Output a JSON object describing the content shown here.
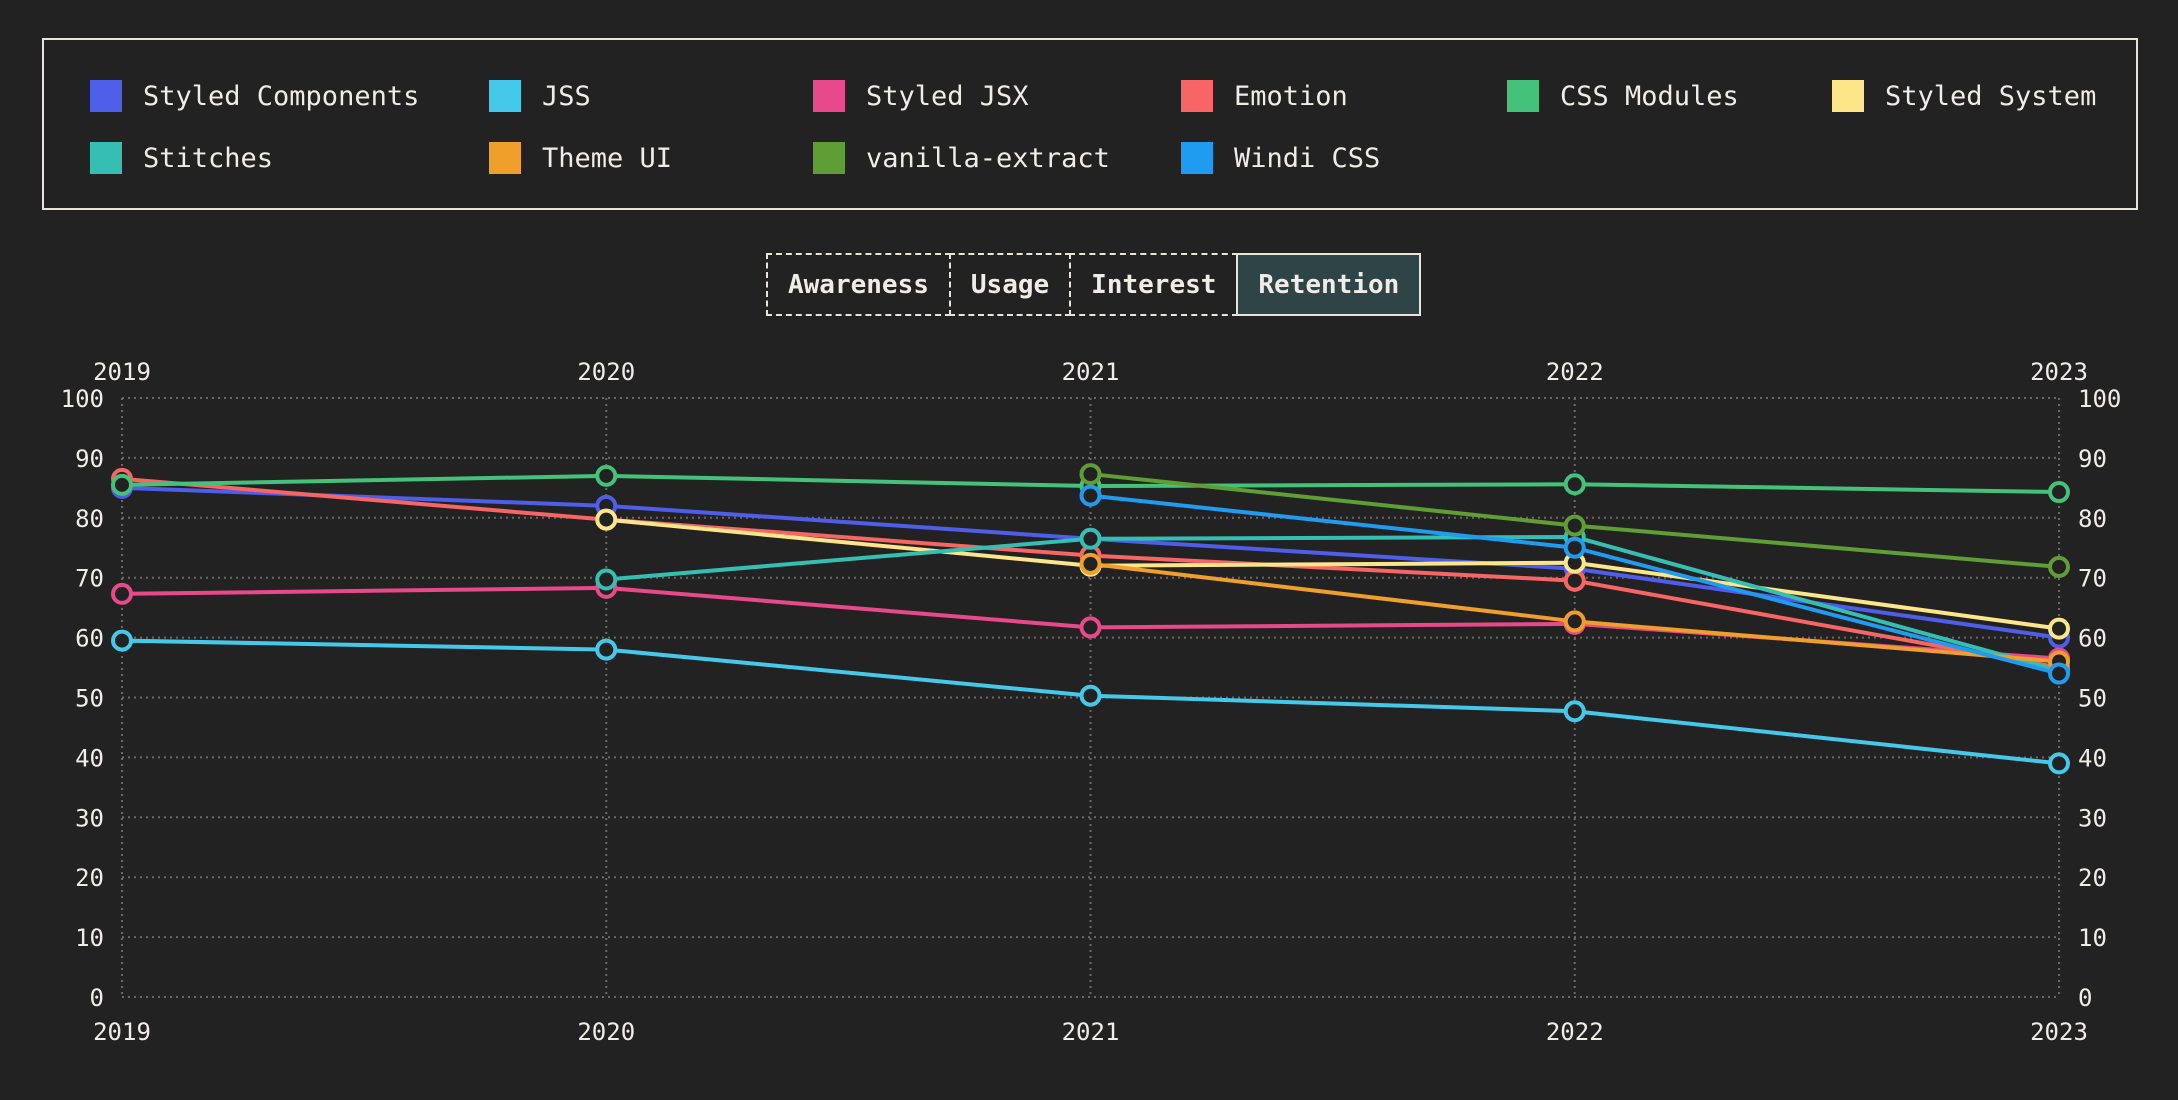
{
  "tabs": [
    {
      "label": "Awareness",
      "active": false
    },
    {
      "label": "Usage",
      "active": false
    },
    {
      "label": "Interest",
      "active": false
    },
    {
      "label": "Retention",
      "active": true
    }
  ],
  "colors": {
    "background": "#232222",
    "grid": "#6b6866",
    "text": "#f0ede6",
    "active_tab": "#2e4447"
  },
  "chart_data": {
    "type": "line",
    "x": [
      "2019",
      "2020",
      "2021",
      "2022",
      "2023"
    ],
    "ylim": [
      0,
      100
    ],
    "yticks": [
      0,
      10,
      20,
      30,
      40,
      50,
      60,
      70,
      80,
      90,
      100
    ],
    "grid": true,
    "legend_placement": "top",
    "series": [
      {
        "name": "Styled Components",
        "color": "#4f5ee8",
        "values": [
          85,
          82,
          76.5,
          71.5,
          60
        ]
      },
      {
        "name": "JSS",
        "color": "#45c9ea",
        "values": [
          59.5,
          58,
          50.3,
          47.7,
          39
        ]
      },
      {
        "name": "Styled JSX",
        "color": "#e8498a",
        "values": [
          67.3,
          68.3,
          61.7,
          62.3,
          56.5
        ]
      },
      {
        "name": "Emotion",
        "color": "#f76664",
        "values": [
          86.5,
          79.7,
          73.7,
          69.5,
          55
        ]
      },
      {
        "name": "CSS Modules",
        "color": "#44c27a",
        "values": [
          85.5,
          87,
          85.3,
          85.6,
          84.3
        ]
      },
      {
        "name": "Styled System",
        "color": "#fde58a",
        "values": [
          null,
          79.7,
          72,
          72.5,
          61.5
        ]
      },
      {
        "name": "Stitches",
        "color": "#35bfb3",
        "values": [
          null,
          69.7,
          76.5,
          76.8,
          54.5
        ]
      },
      {
        "name": "Theme UI",
        "color": "#ef9f2a",
        "values": [
          null,
          null,
          72.3,
          62.7,
          56
        ]
      },
      {
        "name": "vanilla-extract",
        "color": "#5f9e34",
        "values": [
          null,
          null,
          87.3,
          78.7,
          71.8
        ]
      },
      {
        "name": "Windi CSS",
        "color": "#1f9bf0",
        "values": [
          null,
          null,
          83.7,
          75,
          54
        ]
      }
    ]
  }
}
